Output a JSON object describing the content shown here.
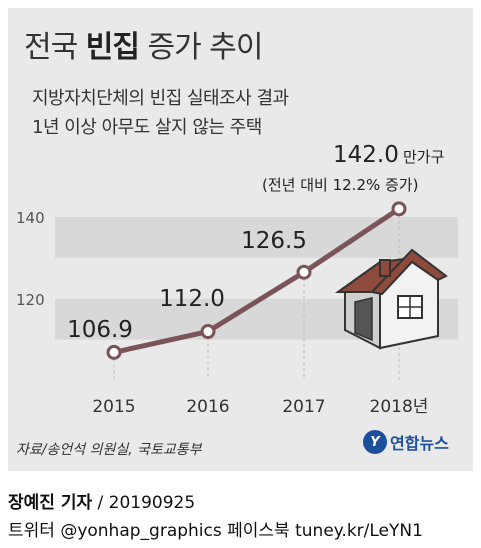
{
  "header": {
    "title_prefix": "전국 ",
    "title_bold": "빈집",
    "title_suffix": " 증가 추이",
    "subtitle_1": "지방자치단체의 빈집 실태조사 결과",
    "subtitle_2": "1년 이상 아무도 살지 않는 주택"
  },
  "chart_data": {
    "type": "line",
    "categories": [
      "2015",
      "2016",
      "2017",
      "2018년"
    ],
    "values": [
      106.9,
      112.0,
      126.5,
      142.0
    ],
    "value_labels": [
      "106.9",
      "112.0",
      "126.5",
      "142.0"
    ],
    "last_value_unit": "만가구",
    "annotation": "(전년 대비 12.2% 증가)",
    "y_ticks": [
      "120",
      "140"
    ],
    "ylim": [
      100,
      150
    ],
    "grid": "horizontal bands",
    "line_color": "#7a5458",
    "band_color": "#d8d8d8"
  },
  "icon": {
    "name": "house-icon",
    "roof_color": "#8e4a3c",
    "wall_color": "#f2f2f2"
  },
  "source": "자료/송언석 의원실, 국토교통부",
  "logo": {
    "mark": "Y",
    "text": "연합뉴스"
  },
  "footer": {
    "reporter": "장예진 기자",
    "date_sep": " / 20190925",
    "social": "트위터 @yonhap_graphics  페이스북 tuney.kr/LeYN1"
  }
}
